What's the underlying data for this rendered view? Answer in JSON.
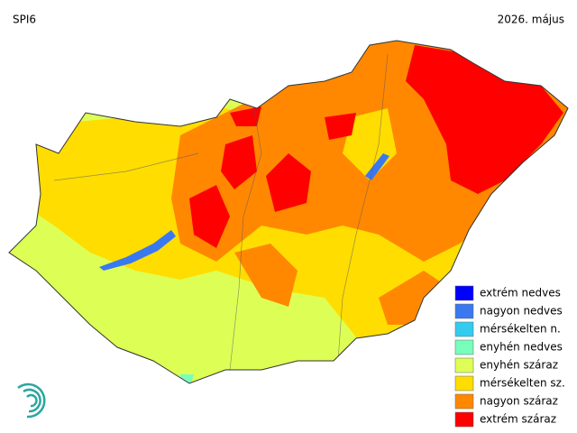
{
  "header": {
    "title": "SPI6",
    "date": "2026. május"
  },
  "legend": {
    "items": [
      {
        "label": "extrém nedves",
        "color": "#0000ff"
      },
      {
        "label": "nagyon nedves",
        "color": "#3a78f0"
      },
      {
        "label": "mérsékelten n.",
        "color": "#33ccee"
      },
      {
        "label": "enyhén nedves",
        "color": "#77ffbb"
      },
      {
        "label": "enyhén száraz",
        "color": "#ddff55"
      },
      {
        "label": "mérsékelten sz.",
        "color": "#ffdd00"
      },
      {
        "label": "nagyon száraz",
        "color": "#ff8800"
      },
      {
        "label": "extrém száraz",
        "color": "#ff0000"
      }
    ]
  }
}
